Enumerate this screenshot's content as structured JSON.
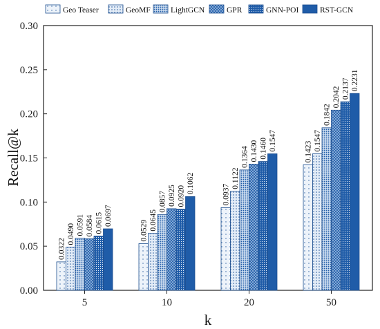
{
  "chart_data": {
    "type": "bar",
    "title": "",
    "xlabel": "k",
    "ylabel": "Recall@k",
    "categories": [
      "5",
      "10",
      "20",
      "50"
    ],
    "ylim": [
      0,
      0.3
    ],
    "yticks": [
      "0.00",
      "0.05",
      "0.10",
      "0.15",
      "0.20",
      "0.25",
      "0.30"
    ],
    "legend_position": "top",
    "series": [
      {
        "name": "Geo Teaser",
        "values": [
          0.0322,
          0.0529,
          0.0937,
          0.1423
        ],
        "labels": [
          "0.0322",
          "0.0529",
          "0.0937",
          "0.1423"
        ],
        "pattern": "sparse-dots"
      },
      {
        "name": "GeoMF",
        "values": [
          0.049,
          0.0645,
          0.1122,
          0.1547
        ],
        "labels": [
          "0.0490",
          "0.0645",
          "0.1122",
          "0.1547"
        ],
        "pattern": "dots"
      },
      {
        "name": "LightGCN",
        "values": [
          0.0591,
          0.0857,
          0.1364,
          0.1842
        ],
        "labels": [
          "0.0591",
          "0.0857",
          "0.1364",
          "0.1842"
        ],
        "pattern": "dense-dots"
      },
      {
        "name": "GPR",
        "values": [
          0.0584,
          0.0925,
          0.143,
          0.2042
        ],
        "labels": [
          "0.0584",
          "0.0925",
          "0.1430",
          "0.2042"
        ],
        "pattern": "crosshatch"
      },
      {
        "name": "GNN-POI",
        "values": [
          0.0615,
          0.092,
          0.146,
          0.2137
        ],
        "labels": [
          "0.0615",
          "0.0920",
          "0.1460",
          "0.2137"
        ],
        "pattern": "dark-dots"
      },
      {
        "name": "RST-GCN",
        "values": [
          0.0697,
          0.1062,
          0.1547,
          0.2231
        ],
        "labels": [
          "0.0697",
          "0.1062",
          "0.1547",
          "0.2231"
        ],
        "pattern": "solid"
      }
    ],
    "colors": {
      "fill_light": "#dfe8f4",
      "fill_mid": "#a9c3e2",
      "fill_dark": "#1f5ca8",
      "edge": "#1f4f8f",
      "axis": "#222222"
    }
  }
}
